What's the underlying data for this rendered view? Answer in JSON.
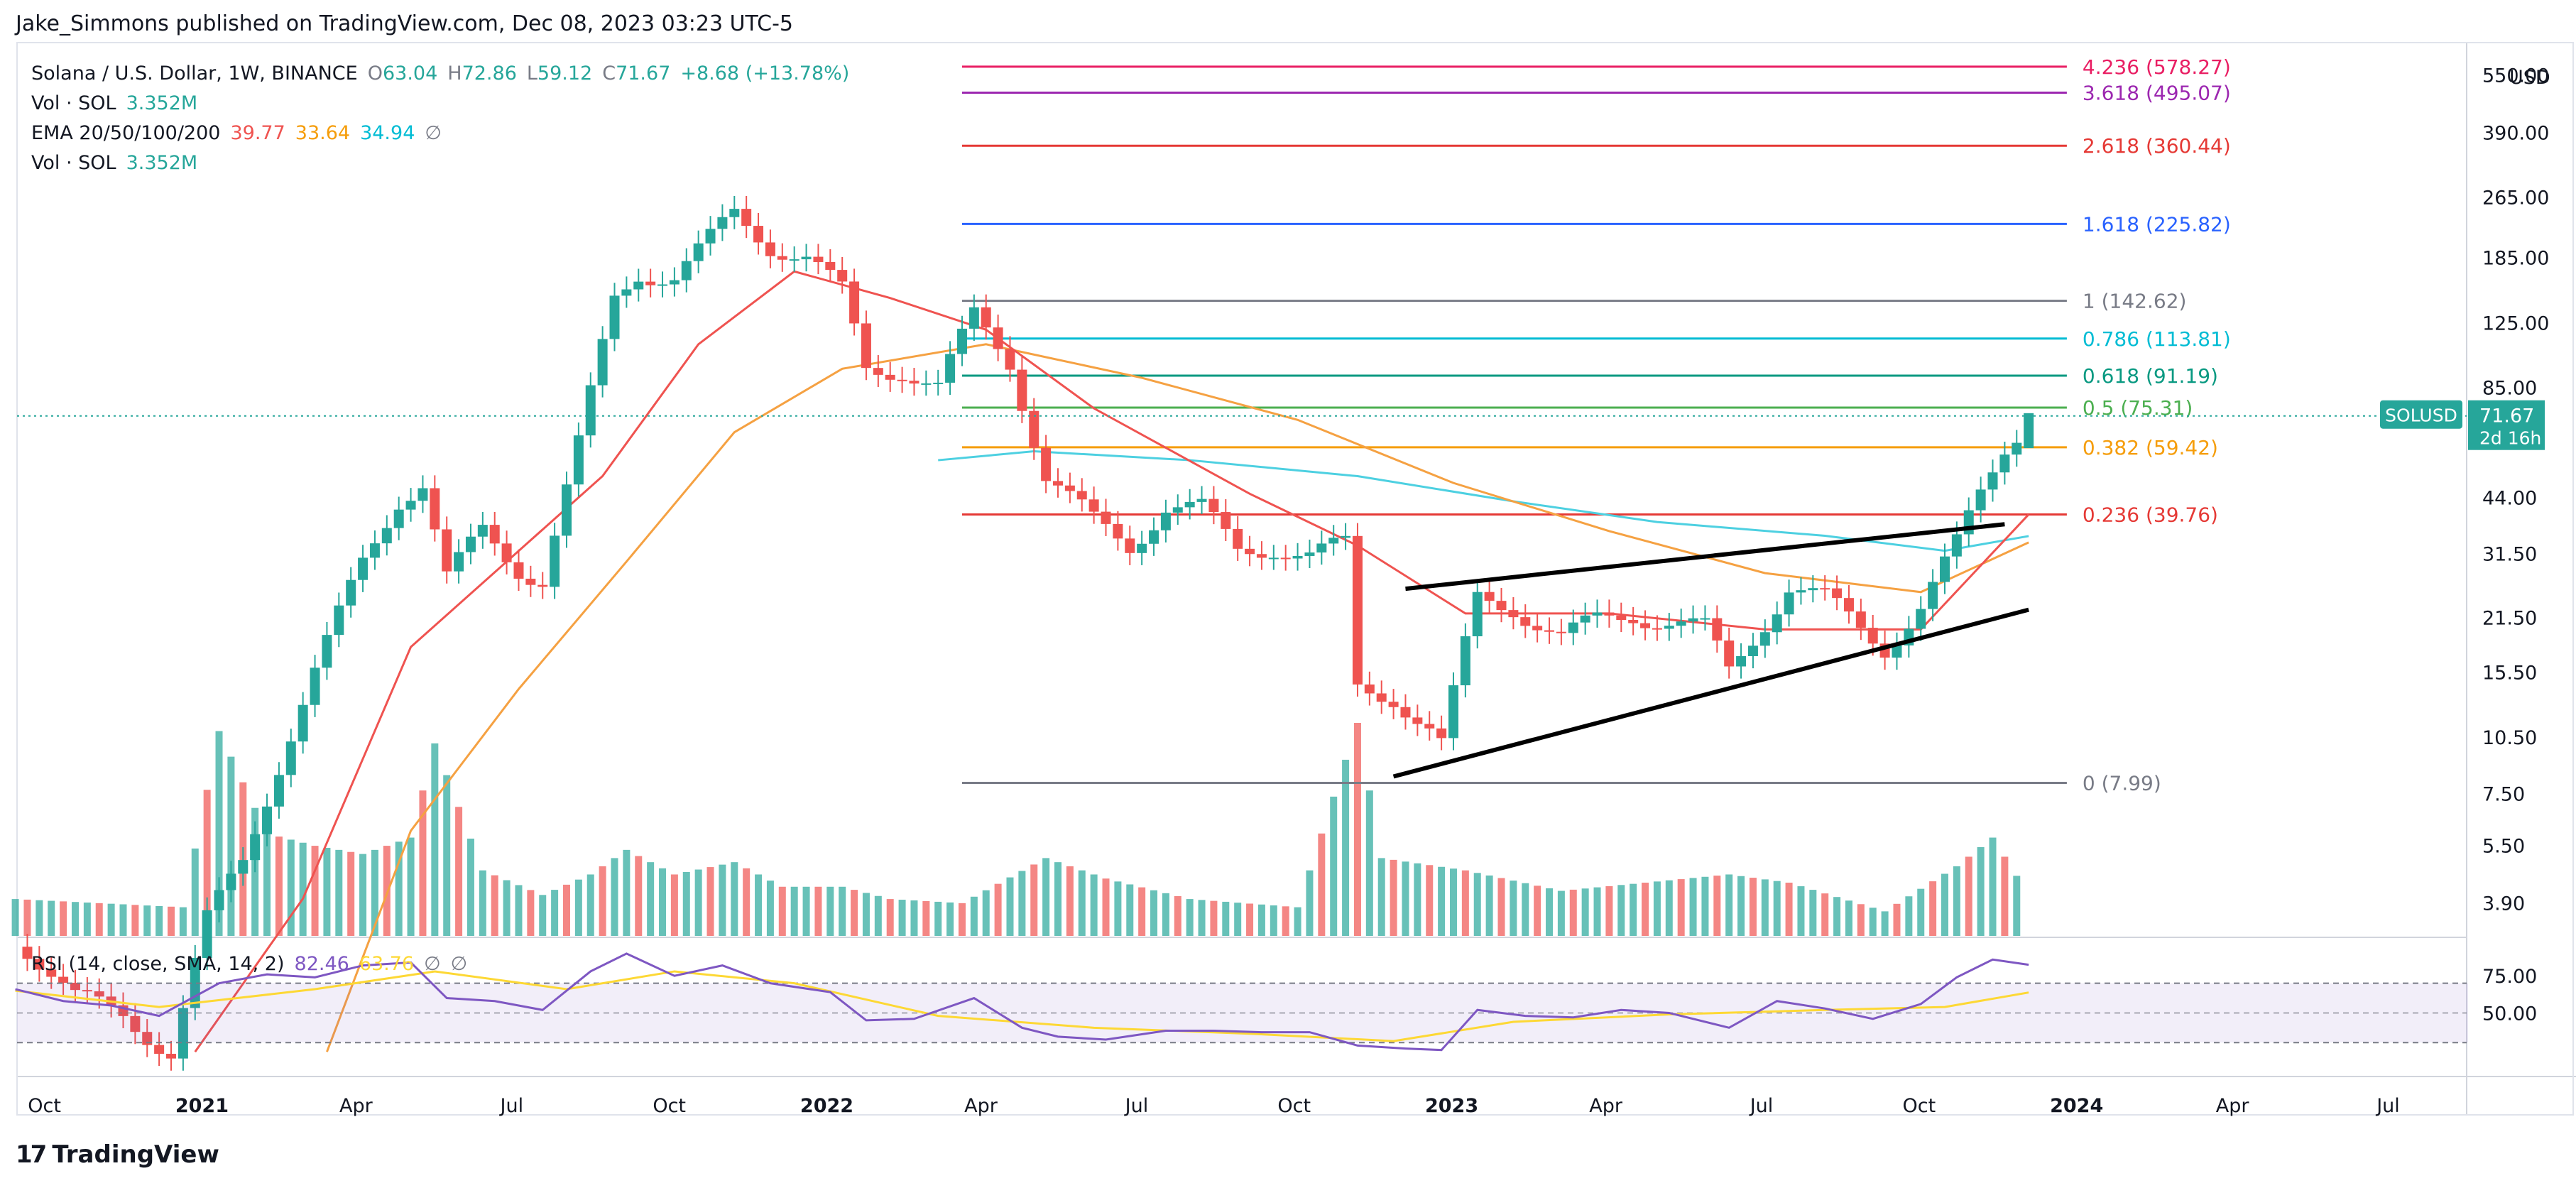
{
  "header": {
    "publisher": "Jake_Simmons published on TradingView.com, Dec 08, 2023 03:23 UTC-5"
  },
  "legend": {
    "symbol": "Solana / U.S. Dollar, 1W, BINANCE",
    "open_label": "O",
    "open": "63.04",
    "high_label": "H",
    "high": "72.86",
    "low_label": "L",
    "low": "59.12",
    "close_label": "C",
    "close": "71.67",
    "change": "+8.68 (+13.78%)",
    "vol1_label": "Vol · SOL",
    "vol1": "3.352M",
    "ema_label": "EMA 20/50/100/200",
    "ema20": "39.77",
    "ema50": "33.64",
    "ema100": "34.94",
    "ema_icon": "∅",
    "vol2_label": "Vol · SOL",
    "vol2": "3.352M"
  },
  "rsi_legend": {
    "label": "RSI (14, close, SMA, 14, 2)",
    "rsi": "82.46",
    "sma": "63.76",
    "icon1": "∅",
    "icon2": "∅"
  },
  "price_axis": {
    "currency": "USD",
    "symbol_tag": "SOLUSD",
    "last_price": "71.67",
    "countdown": "2d 16h"
  },
  "footer": {
    "brand": "TradingView",
    "logo_glyph": "17"
  },
  "colors": {
    "up": "#26a69a",
    "down": "#ef5350",
    "ema20": "#ef5350",
    "ema50": "#f5a142",
    "ema100": "#4dd0e1",
    "rsi": "#7e57c2",
    "rsi_sma": "#fdd835",
    "trend": "#000000"
  },
  "chart_data": {
    "type": "candlestick",
    "timeframe": "1W",
    "y_scale": "log",
    "price_ticks": [
      550,
      390,
      265,
      185,
      125,
      85,
      44,
      31.5,
      21.5,
      15.5,
      10.5,
      7.5,
      5.5,
      3.9
    ],
    "price_tick_labels": [
      "550.00",
      "390.00",
      "265.00",
      "185.00",
      "125.00",
      "85.00",
      "44.00",
      "31.50",
      "21.50",
      "15.50",
      "10.50",
      "7.50",
      "5.50",
      "3.90"
    ],
    "x_ticks": [
      {
        "label": "Oct",
        "date": "2020-10-01",
        "bold": false
      },
      {
        "label": "2021",
        "date": "2021-01-01",
        "bold": true
      },
      {
        "label": "Apr",
        "date": "2021-04-01",
        "bold": false
      },
      {
        "label": "Jul",
        "date": "2021-07-01",
        "bold": false
      },
      {
        "label": "Oct",
        "date": "2021-10-01",
        "bold": false
      },
      {
        "label": "2022",
        "date": "2022-01-01",
        "bold": true
      },
      {
        "label": "Apr",
        "date": "2022-04-01",
        "bold": false
      },
      {
        "label": "Jul",
        "date": "2022-07-01",
        "bold": false
      },
      {
        "label": "Oct",
        "date": "2022-10-01",
        "bold": false
      },
      {
        "label": "2023",
        "date": "2023-01-01",
        "bold": true
      },
      {
        "label": "Apr",
        "date": "2023-04-01",
        "bold": false
      },
      {
        "label": "Jul",
        "date": "2023-07-01",
        "bold": false
      },
      {
        "label": "Oct",
        "date": "2023-10-01",
        "bold": false
      },
      {
        "label": "2024",
        "date": "2024-01-01",
        "bold": true
      },
      {
        "label": "Apr",
        "date": "2024-04-01",
        "bold": false
      },
      {
        "label": "Jul",
        "date": "2024-07-01",
        "bold": false
      }
    ],
    "close_series": [
      {
        "date": "2020-09-21",
        "close": 3.0
      },
      {
        "date": "2020-10-19",
        "close": 2.2
      },
      {
        "date": "2020-11-16",
        "close": 2.0
      },
      {
        "date": "2020-12-14",
        "close": 1.6
      },
      {
        "date": "2021-01-04",
        "close": 3.5
      },
      {
        "date": "2021-01-25",
        "close": 5.0
      },
      {
        "date": "2021-02-15",
        "close": 9.0
      },
      {
        "date": "2021-03-08",
        "close": 15.5
      },
      {
        "date": "2021-04-05",
        "close": 30.0
      },
      {
        "date": "2021-04-26",
        "close": 44.0
      },
      {
        "date": "2021-05-10",
        "close": 48.0
      },
      {
        "date": "2021-05-24",
        "close": 27.0
      },
      {
        "date": "2021-06-14",
        "close": 36.0
      },
      {
        "date": "2021-07-05",
        "close": 29.0
      },
      {
        "date": "2021-07-19",
        "close": 27.0
      },
      {
        "date": "2021-08-09",
        "close": 60.0
      },
      {
        "date": "2021-08-30",
        "close": 145.0
      },
      {
        "date": "2021-09-13",
        "close": 170.0
      },
      {
        "date": "2021-10-04",
        "close": 165.0
      },
      {
        "date": "2021-10-25",
        "close": 205.0
      },
      {
        "date": "2021-11-08",
        "close": 240.0
      },
      {
        "date": "2021-11-29",
        "close": 200.0
      },
      {
        "date": "2021-12-20",
        "close": 185.0
      },
      {
        "date": "2022-01-10",
        "close": 150.0
      },
      {
        "date": "2022-01-24",
        "close": 95.0
      },
      {
        "date": "2022-02-14",
        "close": 95.0
      },
      {
        "date": "2022-03-07",
        "close": 85.0
      },
      {
        "date": "2022-03-28",
        "close": 130.0
      },
      {
        "date": "2022-04-18",
        "close": 100.0
      },
      {
        "date": "2022-05-09",
        "close": 50.0
      },
      {
        "date": "2022-06-06",
        "close": 38.0
      },
      {
        "date": "2022-06-27",
        "close": 33.0
      },
      {
        "date": "2022-07-18",
        "close": 42.0
      },
      {
        "date": "2022-08-08",
        "close": 41.0
      },
      {
        "date": "2022-08-29",
        "close": 32.0
      },
      {
        "date": "2022-09-19",
        "close": 33.0
      },
      {
        "date": "2022-10-10",
        "close": 31.0
      },
      {
        "date": "2022-10-31",
        "close": 33.0
      },
      {
        "date": "2022-11-07",
        "close": 14.0
      },
      {
        "date": "2022-11-28",
        "close": 13.5
      },
      {
        "date": "2022-12-19",
        "close": 11.0
      },
      {
        "date": "2022-12-26",
        "close": 10.0
      },
      {
        "date": "2023-01-09",
        "close": 18.0
      },
      {
        "date": "2023-01-16",
        "close": 24.0
      },
      {
        "date": "2023-02-06",
        "close": 23.0
      },
      {
        "date": "2023-03-06",
        "close": 19.0
      },
      {
        "date": "2023-03-27",
        "close": 21.0
      },
      {
        "date": "2023-04-17",
        "close": 22.0
      },
      {
        "date": "2023-05-08",
        "close": 21.0
      },
      {
        "date": "2023-05-29",
        "close": 20.0
      },
      {
        "date": "2023-06-12",
        "close": 15.5
      },
      {
        "date": "2023-06-26",
        "close": 19.0
      },
      {
        "date": "2023-07-17",
        "close": 26.0
      },
      {
        "date": "2023-08-07",
        "close": 24.0
      },
      {
        "date": "2023-08-28",
        "close": 20.0
      },
      {
        "date": "2023-09-11",
        "close": 18.0
      },
      {
        "date": "2023-10-02",
        "close": 23.0
      },
      {
        "date": "2023-10-23",
        "close": 33.0
      },
      {
        "date": "2023-11-06",
        "close": 45.0
      },
      {
        "date": "2023-11-20",
        "close": 60.0
      },
      {
        "date": "2023-12-04",
        "close": 71.67
      }
    ],
    "fib_levels": [
      {
        "ratio": "0",
        "value": 7.99,
        "label": "0 (7.99)",
        "color": "#787b86"
      },
      {
        "ratio": "0.236",
        "value": 39.76,
        "label": "0.236 (39.76)",
        "color": "#e53935"
      },
      {
        "ratio": "0.382",
        "value": 59.42,
        "label": "0.382 (59.42)",
        "color": "#f59d0b"
      },
      {
        "ratio": "0.5",
        "value": 75.31,
        "label": "0.5 (75.31)",
        "color": "#4caf50"
      },
      {
        "ratio": "0.618",
        "value": 91.19,
        "label": "0.618 (91.19)",
        "color": "#089981"
      },
      {
        "ratio": "0.786",
        "value": 113.81,
        "label": "0.786 (113.81)",
        "color": "#00bcd4"
      },
      {
        "ratio": "1",
        "value": 142.62,
        "label": "1 (142.62)",
        "color": "#787b86"
      },
      {
        "ratio": "1.618",
        "value": 225.82,
        "label": "1.618 (225.82)",
        "color": "#2962ff"
      },
      {
        "ratio": "2.618",
        "value": 360.44,
        "label": "2.618 (360.44)",
        "color": "#e53935"
      },
      {
        "ratio": "3.618",
        "value": 495.07,
        "label": "3.618 (495.07)",
        "color": "#9c27b0"
      },
      {
        "ratio": "4.236",
        "value": 578.27,
        "label": "4.236 (578.27)",
        "color": "#e91e63"
      }
    ],
    "fib_range": [
      "2022-03-21",
      "2023-12-04"
    ],
    "trendlines": [
      {
        "name": "upper",
        "from": {
          "date": "2022-12-05",
          "value": 25.5
        },
        "to": {
          "date": "2023-11-20",
          "value": 37.5
        }
      },
      {
        "name": "lower",
        "from": {
          "date": "2022-11-28",
          "value": 8.3
        },
        "to": {
          "date": "2023-12-04",
          "value": 22.5
        }
      }
    ],
    "rsi_ticks": [
      75,
      50
    ],
    "rsi_band": [
      30,
      70
    ],
    "rsi_series": [
      {
        "date": "2020-09-14",
        "rsi": 66
      },
      {
        "date": "2020-10-12",
        "rsi": 58
      },
      {
        "date": "2020-11-09",
        "rsi": 55
      },
      {
        "date": "2020-12-07",
        "rsi": 48
      },
      {
        "date": "2021-01-11",
        "rsi": 70
      },
      {
        "date": "2021-02-08",
        "rsi": 76
      },
      {
        "date": "2021-03-08",
        "rsi": 74
      },
      {
        "date": "2021-04-05",
        "rsi": 82
      },
      {
        "date": "2021-05-03",
        "rsi": 84
      },
      {
        "date": "2021-05-24",
        "rsi": 60
      },
      {
        "date": "2021-06-21",
        "rsi": 58
      },
      {
        "date": "2021-07-19",
        "rsi": 52
      },
      {
        "date": "2021-08-16",
        "rsi": 78
      },
      {
        "date": "2021-09-06",
        "rsi": 90
      },
      {
        "date": "2021-10-04",
        "rsi": 75
      },
      {
        "date": "2021-11-01",
        "rsi": 82
      },
      {
        "date": "2021-11-29",
        "rsi": 70
      },
      {
        "date": "2022-01-03",
        "rsi": 64
      },
      {
        "date": "2022-01-24",
        "rsi": 45
      },
      {
        "date": "2022-02-21",
        "rsi": 46
      },
      {
        "date": "2022-03-28",
        "rsi": 60
      },
      {
        "date": "2022-04-25",
        "rsi": 40
      },
      {
        "date": "2022-05-16",
        "rsi": 34
      },
      {
        "date": "2022-06-13",
        "rsi": 32
      },
      {
        "date": "2022-07-18",
        "rsi": 38
      },
      {
        "date": "2022-08-15",
        "rsi": 38
      },
      {
        "date": "2022-09-12",
        "rsi": 37
      },
      {
        "date": "2022-10-10",
        "rsi": 37
      },
      {
        "date": "2022-11-07",
        "rsi": 28
      },
      {
        "date": "2022-12-05",
        "rsi": 26
      },
      {
        "date": "2022-12-26",
        "rsi": 25
      },
      {
        "date": "2023-01-16",
        "rsi": 52
      },
      {
        "date": "2023-02-13",
        "rsi": 48
      },
      {
        "date": "2023-03-13",
        "rsi": 47
      },
      {
        "date": "2023-04-10",
        "rsi": 52
      },
      {
        "date": "2023-05-08",
        "rsi": 50
      },
      {
        "date": "2023-06-12",
        "rsi": 40
      },
      {
        "date": "2023-07-10",
        "rsi": 58
      },
      {
        "date": "2023-08-07",
        "rsi": 53
      },
      {
        "date": "2023-09-04",
        "rsi": 46
      },
      {
        "date": "2023-10-02",
        "rsi": 56
      },
      {
        "date": "2023-10-23",
        "rsi": 74
      },
      {
        "date": "2023-11-13",
        "rsi": 86
      },
      {
        "date": "2023-12-04",
        "rsi": 82.46
      }
    ],
    "rsi_sma_series": [
      {
        "date": "2020-09-14",
        "sma": 65
      },
      {
        "date": "2020-12-07",
        "sma": 54
      },
      {
        "date": "2021-03-08",
        "sma": 66
      },
      {
        "date": "2021-05-17",
        "sma": 78
      },
      {
        "date": "2021-08-02",
        "sma": 66
      },
      {
        "date": "2021-10-04",
        "sma": 78
      },
      {
        "date": "2021-12-13",
        "sma": 70
      },
      {
        "date": "2022-03-07",
        "sma": 48
      },
      {
        "date": "2022-06-06",
        "sma": 40
      },
      {
        "date": "2022-09-05",
        "sma": 36
      },
      {
        "date": "2022-11-28",
        "sma": 31
      },
      {
        "date": "2023-02-06",
        "sma": 44
      },
      {
        "date": "2023-05-08",
        "sma": 49
      },
      {
        "date": "2023-08-07",
        "sma": 52
      },
      {
        "date": "2023-10-16",
        "sma": 54
      },
      {
        "date": "2023-12-04",
        "sma": 63.76
      }
    ],
    "ema20_series": [
      {
        "date": "2020-12-28",
        "v": 1.6
      },
      {
        "date": "2021-03-01",
        "v": 4.0
      },
      {
        "date": "2021-05-03",
        "v": 18.0
      },
      {
        "date": "2021-06-28",
        "v": 30.0
      },
      {
        "date": "2021-08-23",
        "v": 50.0
      },
      {
        "date": "2021-10-18",
        "v": 110.0
      },
      {
        "date": "2021-12-13",
        "v": 170.0
      },
      {
        "date": "2022-02-07",
        "v": 145.0
      },
      {
        "date": "2022-04-04",
        "v": 120.0
      },
      {
        "date": "2022-06-06",
        "v": 75.0
      },
      {
        "date": "2022-09-05",
        "v": 45.0
      },
      {
        "date": "2022-11-07",
        "v": 33.0
      },
      {
        "date": "2023-01-09",
        "v": 22.0
      },
      {
        "date": "2023-04-03",
        "v": 22.0
      },
      {
        "date": "2023-07-03",
        "v": 20.0
      },
      {
        "date": "2023-10-02",
        "v": 20.0
      },
      {
        "date": "2023-12-04",
        "v": 39.77
      }
    ],
    "ema50_series": [
      {
        "date": "2021-03-15",
        "v": 1.6
      },
      {
        "date": "2021-05-03",
        "v": 6.0
      },
      {
        "date": "2021-07-05",
        "v": 14.0
      },
      {
        "date": "2021-09-06",
        "v": 30.0
      },
      {
        "date": "2021-11-08",
        "v": 65.0
      },
      {
        "date": "2022-01-10",
        "v": 95.0
      },
      {
        "date": "2022-04-04",
        "v": 110.0
      },
      {
        "date": "2022-07-04",
        "v": 90.0
      },
      {
        "date": "2022-10-03",
        "v": 70.0
      },
      {
        "date": "2023-01-02",
        "v": 48.0
      },
      {
        "date": "2023-04-03",
        "v": 36.0
      },
      {
        "date": "2023-07-03",
        "v": 28.0
      },
      {
        "date": "2023-10-02",
        "v": 25.0
      },
      {
        "date": "2023-12-04",
        "v": 33.64
      }
    ],
    "ema100_series": [
      {
        "date": "2022-03-07",
        "v": 55.0
      },
      {
        "date": "2022-05-02",
        "v": 58.0
      },
      {
        "date": "2022-08-01",
        "v": 55.0
      },
      {
        "date": "2022-11-07",
        "v": 50.0
      },
      {
        "date": "2023-02-06",
        "v": 43.0
      },
      {
        "date": "2023-05-01",
        "v": 38.0
      },
      {
        "date": "2023-08-07",
        "v": 35.0
      },
      {
        "date": "2023-10-16",
        "v": 32.0
      },
      {
        "date": "2023-12-04",
        "v": 34.94
      }
    ],
    "volume_series": [
      {
        "date": "2020-09-14",
        "v": 0.9
      },
      {
        "date": "2020-11-02",
        "v": 0.8
      },
      {
        "date": "2020-12-21",
        "v": 0.7
      },
      {
        "date": "2021-01-11",
        "v": 5.0
      },
      {
        "date": "2021-02-08",
        "v": 2.5
      },
      {
        "date": "2021-03-08",
        "v": 2.2
      },
      {
        "date": "2021-04-05",
        "v": 2.0
      },
      {
        "date": "2021-05-03",
        "v": 2.4
      },
      {
        "date": "2021-05-17",
        "v": 4.7
      },
      {
        "date": "2021-06-14",
        "v": 1.6
      },
      {
        "date": "2021-07-19",
        "v": 1.0
      },
      {
        "date": "2021-08-16",
        "v": 1.5
      },
      {
        "date": "2021-09-06",
        "v": 2.1
      },
      {
        "date": "2021-10-04",
        "v": 1.5
      },
      {
        "date": "2021-11-08",
        "v": 1.8
      },
      {
        "date": "2021-12-06",
        "v": 1.2
      },
      {
        "date": "2022-01-10",
        "v": 1.2
      },
      {
        "date": "2022-02-07",
        "v": 0.9
      },
      {
        "date": "2022-03-21",
        "v": 0.8
      },
      {
        "date": "2022-05-09",
        "v": 1.9
      },
      {
        "date": "2022-06-13",
        "v": 1.4
      },
      {
        "date": "2022-08-01",
        "v": 0.9
      },
      {
        "date": "2022-10-03",
        "v": 0.7
      },
      {
        "date": "2022-11-07",
        "v": 5.2
      },
      {
        "date": "2022-11-21",
        "v": 1.9
      },
      {
        "date": "2023-01-09",
        "v": 1.6
      },
      {
        "date": "2023-03-06",
        "v": 1.1
      },
      {
        "date": "2023-06-12",
        "v": 1.5
      },
      {
        "date": "2023-07-17",
        "v": 1.3
      },
      {
        "date": "2023-09-11",
        "v": 0.6
      },
      {
        "date": "2023-10-23",
        "v": 1.7
      },
      {
        "date": "2023-11-13",
        "v": 2.4
      },
      {
        "date": "2023-12-04",
        "v": 1.0
      }
    ]
  }
}
